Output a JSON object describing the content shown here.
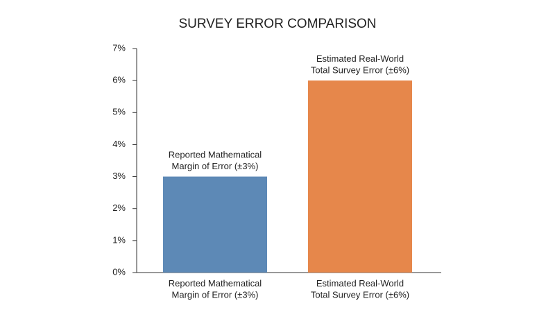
{
  "chart_data": {
    "type": "bar",
    "title": "SURVEY ERROR COMPARISON",
    "categories": [
      "Reported Mathematical\nMargin of Error (±3%)",
      "Estimated Real-World\nTotal Survey Error (±6%)"
    ],
    "values": [
      3,
      6
    ],
    "value_labels": [
      "Reported Mathematical\nMargin of Error (±3%)",
      "Estimated Real-World\nTotal Survey Error (±6%)"
    ],
    "colors": [
      "#5d89b6",
      "#e6874b"
    ],
    "ylim": [
      0,
      7
    ],
    "yticks": [
      {
        "value": 0,
        "label": "0%"
      },
      {
        "value": 1,
        "label": "1%"
      },
      {
        "value": 2,
        "label": "2%"
      },
      {
        "value": 3,
        "label": "3%"
      },
      {
        "value": 4,
        "label": "4%"
      },
      {
        "value": 5,
        "label": "5%"
      },
      {
        "value": 6,
        "label": "6%"
      },
      {
        "value": 7,
        "label": "7%"
      }
    ],
    "grid": false
  }
}
